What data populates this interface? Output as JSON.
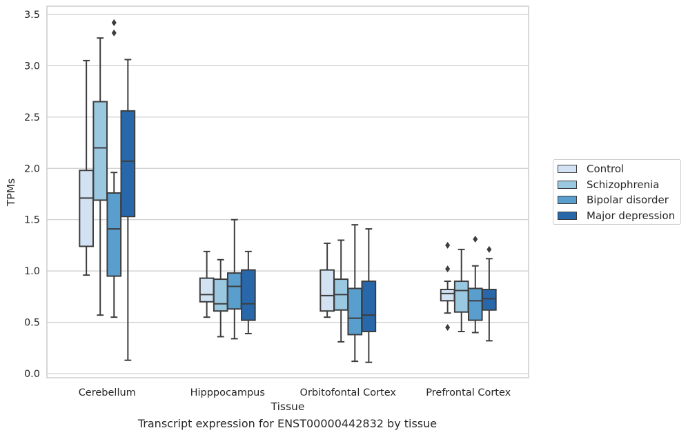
{
  "chart_data": {
    "type": "box",
    "xlabel": "Tissue",
    "ylabel": "TPMs",
    "ylim": [
      -0.04,
      3.58
    ],
    "yticks": [
      "0.0",
      "0.5",
      "1.0",
      "1.5",
      "2.0",
      "2.5",
      "3.0",
      "3.5"
    ],
    "grid": "horizontal",
    "legend_placement": "outside-right",
    "categories": [
      "Cerebellum",
      "Hipppocampus",
      "Orbitofontal Cortex",
      "Prefrontal Cortex"
    ],
    "series": [
      {
        "name": "Control",
        "color": "#d2e2f2",
        "boxes": [
          {
            "whislo": 0.96,
            "q1": 1.24,
            "med": 1.71,
            "q3": 1.98,
            "whishi": 3.05,
            "fliers": []
          },
          {
            "whislo": 0.55,
            "q1": 0.7,
            "med": 0.77,
            "q3": 0.93,
            "whishi": 1.19,
            "fliers": []
          },
          {
            "whislo": 0.55,
            "q1": 0.61,
            "med": 0.76,
            "q3": 1.01,
            "whishi": 1.27,
            "fliers": []
          },
          {
            "whislo": 0.59,
            "q1": 0.71,
            "med": 0.78,
            "q3": 0.82,
            "whishi": 0.9,
            "fliers": [
              1.25,
              1.02,
              0.45
            ]
          }
        ]
      },
      {
        "name": "Schizophrenia",
        "color": "#9ac8e0",
        "boxes": [
          {
            "whislo": 0.57,
            "q1": 1.69,
            "med": 2.2,
            "q3": 2.65,
            "whishi": 3.27,
            "fliers": []
          },
          {
            "whislo": 0.36,
            "q1": 0.61,
            "med": 0.68,
            "q3": 0.92,
            "whishi": 1.11,
            "fliers": []
          },
          {
            "whislo": 0.31,
            "q1": 0.62,
            "med": 0.77,
            "q3": 0.92,
            "whishi": 1.3,
            "fliers": []
          },
          {
            "whislo": 0.41,
            "q1": 0.6,
            "med": 0.81,
            "q3": 0.9,
            "whishi": 1.21,
            "fliers": []
          }
        ]
      },
      {
        "name": "Bipolar disorder",
        "color": "#5a9ecd",
        "boxes": [
          {
            "whislo": 0.55,
            "q1": 0.95,
            "med": 1.41,
            "q3": 1.76,
            "whishi": 1.96,
            "fliers": [
              3.32,
              3.42
            ]
          },
          {
            "whislo": 0.34,
            "q1": 0.63,
            "med": 0.85,
            "q3": 0.98,
            "whishi": 1.5,
            "fliers": []
          },
          {
            "whislo": 0.12,
            "q1": 0.38,
            "med": 0.54,
            "q3": 0.83,
            "whishi": 1.45,
            "fliers": []
          },
          {
            "whislo": 0.4,
            "q1": 0.52,
            "med": 0.71,
            "q3": 0.83,
            "whishi": 1.05,
            "fliers": [
              1.31
            ]
          }
        ]
      },
      {
        "name": "Major depression",
        "color": "#2868aa",
        "boxes": [
          {
            "whislo": 0.13,
            "q1": 1.53,
            "med": 2.07,
            "q3": 2.56,
            "whishi": 3.06,
            "fliers": []
          },
          {
            "whislo": 0.39,
            "q1": 0.52,
            "med": 0.68,
            "q3": 1.01,
            "whishi": 1.19,
            "fliers": []
          },
          {
            "whislo": 0.11,
            "q1": 0.41,
            "med": 0.57,
            "q3": 0.9,
            "whishi": 1.41,
            "fliers": []
          },
          {
            "whislo": 0.32,
            "q1": 0.62,
            "med": 0.73,
            "q3": 0.82,
            "whishi": 1.12,
            "fliers": [
              1.21
            ]
          }
        ]
      }
    ]
  },
  "caption": "Transcript expression for ENST00000442832 by tissue"
}
